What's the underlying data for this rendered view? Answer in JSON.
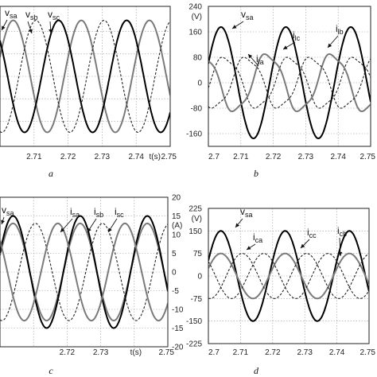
{
  "chart_data": [
    {
      "panel_label": "a",
      "type": "line",
      "xlim": [
        2.7,
        2.75
      ],
      "x_ticks": [
        "2.71",
        "2.72",
        "2.73",
        "2.74",
        "t(s)",
        "2.75"
      ],
      "left_y_ticks": [],
      "right_y_ticks": [],
      "axis_units": {
        "left": "",
        "right": ""
      },
      "grid": true,
      "series": [
        {
          "name": "v_sa",
          "label_main": "v",
          "label_sub": "sa",
          "style": "gray",
          "amplitude": 1,
          "phase_deg": 0
        },
        {
          "name": "v_sb",
          "label_main": "v",
          "label_sub": "sb",
          "style": "dashed",
          "amplitude": 1,
          "phase_deg": -120
        },
        {
          "name": "v_sc",
          "label_main": "v",
          "label_sub": "sc",
          "style": "black",
          "amplitude": 1,
          "phase_deg": 120
        }
      ]
    },
    {
      "panel_label": "b",
      "type": "line",
      "xlim": [
        2.7,
        2.75
      ],
      "x_ticks": [
        "2.7",
        "2.71",
        "2.72",
        "2.73",
        "2.74",
        "2.75"
      ],
      "left_y_ticks": [
        "240",
        "160",
        "80",
        "0",
        "-80",
        "-160"
      ],
      "right_y_ticks": [],
      "axis_units": {
        "left": "(V)",
        "right": ""
      },
      "ylim": [
        -200,
        240
      ],
      "grid": true,
      "series": [
        {
          "name": "v_sa",
          "label_main": "v",
          "label_sub": "sa",
          "style": "black",
          "amplitude": 175,
          "phase_deg": 0
        },
        {
          "name": "i_la",
          "label_main": "i",
          "label_sub": "la",
          "style": "dashed",
          "amplitude": 80,
          "phase_deg": -25
        },
        {
          "name": "i_lc",
          "label_main": "i",
          "label_sub": "lc",
          "style": "gray",
          "amplitude": 90,
          "phase_deg": 100
        },
        {
          "name": "i_lb",
          "label_main": "i",
          "label_sub": "lb",
          "style": "dashed",
          "amplitude": 80,
          "phase_deg": -145
        }
      ]
    },
    {
      "panel_label": "c",
      "type": "line",
      "xlim": [
        2.7,
        2.75
      ],
      "x_ticks": [
        "2.72",
        "2.73",
        "t(s)",
        "2.75"
      ],
      "left_y_ticks": [],
      "right_y_ticks": [
        "20",
        "15",
        "10",
        "5",
        "0",
        "-5",
        "-10",
        "-15",
        "-20"
      ],
      "axis_units": {
        "left": "",
        "right": "(A)"
      },
      "ylim": [
        -20,
        20
      ],
      "grid": true,
      "series": [
        {
          "name": "v_sa",
          "label_main": "v",
          "label_sub": "sa",
          "style": "gray",
          "amplitude": 13,
          "phase_deg": 0
        },
        {
          "name": "i_sa",
          "label_main": "i",
          "label_sub": "sa",
          "style": "black",
          "amplitude": 15,
          "phase_deg": 0
        },
        {
          "name": "i_sb",
          "label_main": "i",
          "label_sub": "sb",
          "style": "dashed",
          "amplitude": 13,
          "phase_deg": -120
        },
        {
          "name": "i_sc",
          "label_main": "i",
          "label_sub": "sc",
          "style": "gray",
          "amplitude": 13,
          "phase_deg": 120
        }
      ]
    },
    {
      "panel_label": "d",
      "type": "line",
      "xlim": [
        2.7,
        2.75
      ],
      "x_ticks": [
        "2.7",
        "2.71",
        "2.72",
        "2.73",
        "2.74",
        "2.75"
      ],
      "left_y_ticks": [
        "225",
        "150",
        "75",
        "0",
        "-75",
        "-150",
        "-225"
      ],
      "right_y_ticks": [],
      "axis_units": {
        "left": "(V)",
        "right": ""
      },
      "ylim": [
        -225,
        225
      ],
      "grid": true,
      "series": [
        {
          "name": "v_sa",
          "label_main": "v",
          "label_sub": "sa",
          "style": "black",
          "amplitude": 150,
          "phase_deg": 0
        },
        {
          "name": "i_ca",
          "label_main": "i",
          "label_sub": "ca",
          "style": "gray",
          "amplitude": 75,
          "phase_deg": 0
        },
        {
          "name": "i_cc",
          "label_main": "i",
          "label_sub": "cc",
          "style": "dashed",
          "amplitude": 75,
          "phase_deg": 120
        },
        {
          "name": "i_cb",
          "label_main": "i",
          "label_sub": "cb",
          "style": "dashed",
          "amplitude": 75,
          "phase_deg": -120
        }
      ]
    }
  ]
}
